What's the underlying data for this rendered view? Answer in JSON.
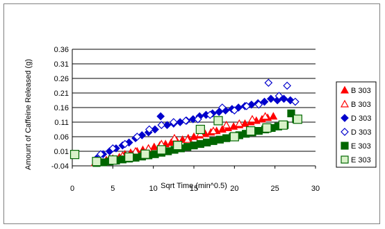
{
  "chart_data": {
    "type": "scatter",
    "title": "",
    "xlabel": "Sqrt Time (min^0.5)",
    "ylabel": "Amount of Caffeine Released (g)",
    "xlim": [
      0,
      30
    ],
    "ylim": [
      -0.04,
      0.36
    ],
    "xticks": [
      "0",
      "5",
      "10",
      "15",
      "20",
      "25",
      "30"
    ],
    "yticks": [
      "-0.04",
      "0.01",
      "0.06",
      "0.11",
      "0.16",
      "0.21",
      "0.26",
      "0.31",
      "0.36"
    ],
    "grid": "horizontal",
    "legend": "right",
    "series": [
      {
        "name": "B 303",
        "marker": "triangle",
        "filled": true,
        "color": "#ff0000",
        "x": [
          2.8,
          3.5,
          4.2,
          5.0,
          5.8,
          6.5,
          7.2,
          8.0,
          8.7,
          9.4,
          10.1,
          10.8,
          11.5,
          12.2,
          12.9,
          13.6,
          14.3,
          15.0,
          15.7,
          16.4,
          17.1,
          17.8,
          18.5,
          19.2,
          19.9,
          20.6,
          21.3,
          22.0,
          22.7,
          23.4,
          24.1,
          24.8
        ],
        "y": [
          -0.03,
          -0.025,
          -0.02,
          -0.015,
          -0.01,
          0.0,
          0.005,
          0.01,
          0.015,
          0.02,
          0.025,
          0.03,
          0.035,
          0.04,
          0.045,
          0.05,
          0.055,
          0.06,
          0.065,
          0.07,
          0.075,
          0.08,
          0.085,
          0.09,
          0.095,
          0.1,
          0.105,
          0.11,
          0.115,
          0.12,
          0.125,
          0.13
        ]
      },
      {
        "name": "B 303",
        "marker": "triangle",
        "filled": false,
        "color": "#ff0000",
        "x": [
          3.0,
          4.6,
          6.2,
          7.8,
          9.4,
          11.0,
          12.6,
          14.2,
          15.8,
          17.4,
          19.0,
          20.6,
          22.2,
          23.8
        ],
        "y": [
          -0.025,
          -0.015,
          -0.005,
          0.01,
          0.02,
          0.035,
          0.055,
          0.05,
          0.07,
          0.08,
          0.1,
          0.105,
          0.12,
          0.13
        ]
      },
      {
        "name": "D 303",
        "marker": "diamond",
        "filled": true,
        "color": "#0000cc",
        "x": [
          3.0,
          3.8,
          4.6,
          5.4,
          6.2,
          7.0,
          7.8,
          8.6,
          9.4,
          10.2,
          10.9,
          11.7,
          12.5,
          13.3,
          14.1,
          14.9,
          15.7,
          16.5,
          17.3,
          18.1,
          18.9,
          19.7,
          20.5,
          21.3,
          22.1,
          22.9,
          23.7,
          24.5,
          25.3,
          26.1,
          26.9
        ],
        "y": [
          -0.015,
          0.0,
          0.01,
          0.02,
          0.03,
          0.04,
          0.055,
          0.065,
          0.075,
          0.085,
          0.13,
          0.1,
          0.105,
          0.11,
          0.115,
          0.12,
          0.13,
          0.135,
          0.14,
          0.145,
          0.15,
          0.155,
          0.16,
          0.165,
          0.17,
          0.175,
          0.18,
          0.19,
          0.185,
          0.19,
          0.185
        ]
      },
      {
        "name": "D 303",
        "marker": "diamond",
        "filled": false,
        "color": "#0000cc",
        "x": [
          3.5,
          5.0,
          6.5,
          8.0,
          9.5,
          11.0,
          12.5,
          14.0,
          15.5,
          17.0,
          18.5,
          20.0,
          21.5,
          23.0,
          24.2,
          25.5,
          26.5,
          27.5
        ],
        "y": [
          0.0,
          0.02,
          0.035,
          0.06,
          0.085,
          0.1,
          0.11,
          0.115,
          0.12,
          0.135,
          0.16,
          0.15,
          0.165,
          0.17,
          0.245,
          0.2,
          0.235,
          0.18
        ]
      },
      {
        "name": "E 303",
        "marker": "square",
        "filled": true,
        "color": "#006600",
        "x": [
          3.0,
          3.8,
          4.6,
          5.4,
          6.2,
          7.0,
          7.8,
          8.6,
          9.4,
          10.2,
          11.0,
          11.8,
          12.6,
          13.4,
          14.2,
          15.0,
          15.8,
          16.6,
          17.4,
          18.2,
          19.0,
          19.8,
          20.6,
          21.4,
          22.2,
          23.0,
          23.8,
          24.6,
          25.4,
          26.2,
          27.0,
          27.6
        ],
        "y": [
          -0.03,
          -0.028,
          -0.025,
          -0.022,
          -0.018,
          -0.015,
          -0.012,
          -0.008,
          -0.004,
          0.0,
          0.005,
          0.01,
          0.015,
          0.02,
          0.025,
          0.03,
          0.035,
          0.04,
          0.045,
          0.05,
          0.055,
          0.06,
          0.065,
          0.07,
          0.075,
          0.08,
          0.085,
          0.09,
          0.095,
          0.1,
          0.14,
          0.12
        ]
      },
      {
        "name": "E 303",
        "marker": "square",
        "filled": false,
        "color": "#006600",
        "x": [
          0.3,
          3.0,
          5.0,
          7.0,
          9.0,
          11.0,
          13.0,
          15.8,
          18.0,
          20.0,
          22.0,
          24.0,
          26.0,
          27.8
        ],
        "y": [
          -0.001,
          -0.025,
          -0.02,
          -0.01,
          0.0,
          0.015,
          0.03,
          0.085,
          0.115,
          0.06,
          0.08,
          0.09,
          0.1,
          0.12
        ]
      }
    ]
  }
}
